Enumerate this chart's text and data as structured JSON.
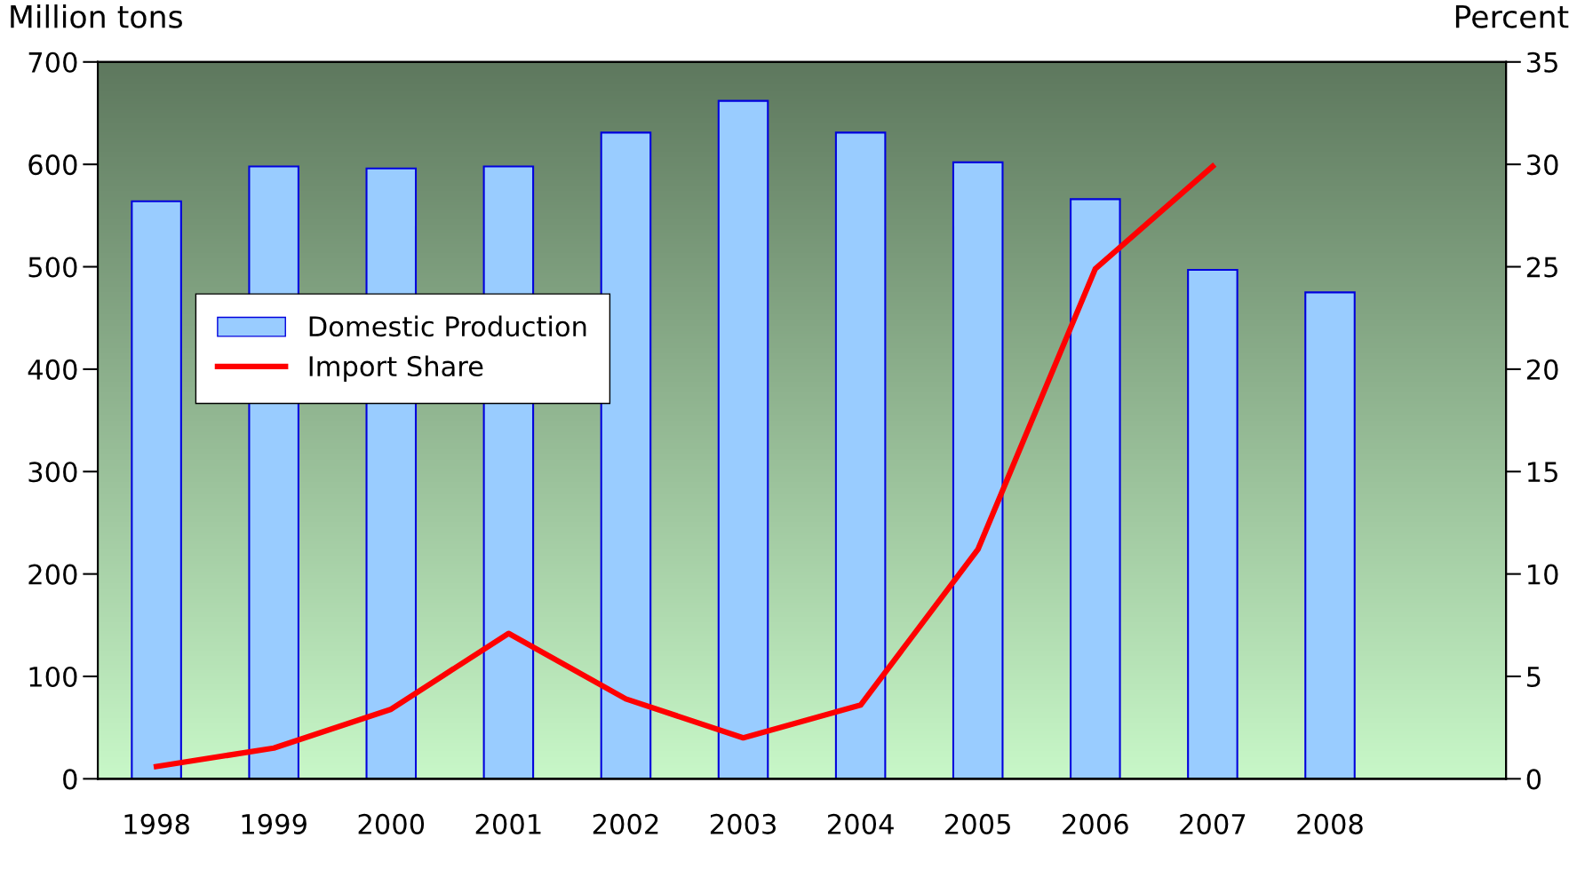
{
  "chart_data": {
    "type": "bar",
    "ylabel": "Million tons",
    "y2label": "Percent",
    "categories": [
      "1998",
      "1999",
      "2000",
      "2001",
      "2002",
      "2003",
      "2004",
      "2005",
      "2006",
      "2007",
      "2008",
      null
    ],
    "series": [
      {
        "name": "Domestic Production",
        "color": "#99ccff",
        "values": [
          564,
          598,
          596,
          598,
          631,
          662,
          631,
          602,
          566,
          497,
          475,
          null
        ]
      },
      {
        "name": "Import Share",
        "type": "line",
        "axis": "y2",
        "color": "#ff0000",
        "values": [
          0.6,
          1.5,
          3.4,
          7.1,
          3.9,
          2.0,
          3.6,
          11.2,
          24.9,
          29.9,
          null,
          null
        ]
      }
    ],
    "ylim": [
      0,
      700
    ],
    "yticks": [
      0,
      100,
      200,
      300,
      400,
      500,
      600,
      700
    ],
    "y2lim": [
      0,
      35
    ],
    "y2ticks": [
      0,
      5,
      10,
      15,
      20,
      25,
      30,
      35
    ],
    "legend": "center left",
    "grid": false,
    "marker": "none",
    "line_style": "solid"
  }
}
